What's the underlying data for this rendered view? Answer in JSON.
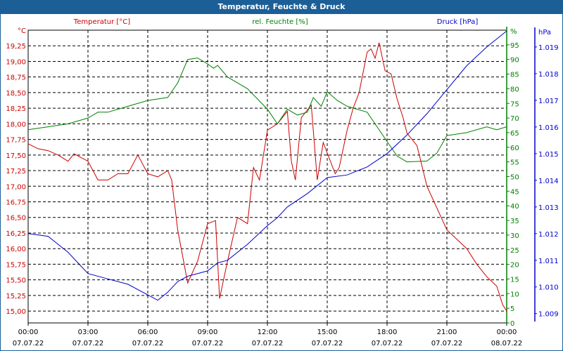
{
  "title": "Temperatur, Feuchte & Druck",
  "chart_data": {
    "type": "line",
    "title": "Temperatur, Feuchte & Druck",
    "x_ticks": [
      {
        "t": 0,
        "time": "00:00",
        "date": "07.07.22"
      },
      {
        "t": 3,
        "time": "03:00",
        "date": "07.07.22"
      },
      {
        "t": 6,
        "time": "06:00",
        "date": "07.07.22"
      },
      {
        "t": 9,
        "time": "09:00",
        "date": "07.07.22"
      },
      {
        "t": 12,
        "time": "12:00",
        "date": "07.07.22"
      },
      {
        "t": 15,
        "time": "15:00",
        "date": "07.07.22"
      },
      {
        "t": 18,
        "time": "18:00",
        "date": "07.07.22"
      },
      {
        "t": 21,
        "time": "21:00",
        "date": "07.07.22"
      },
      {
        "t": 24,
        "time": "00:00",
        "date": "08.07.22"
      }
    ],
    "xlim": [
      0,
      24
    ],
    "grid": true,
    "axes": {
      "temp": {
        "label": "Temperatur [°C]",
        "unit": "°C",
        "color": "#cc0000",
        "ylim": [
          14.81,
          19.5
        ],
        "ticks": [
          "15,00",
          "15,25",
          "15,50",
          "15,75",
          "16,00",
          "16,25",
          "16,50",
          "16,75",
          "17,00",
          "17,25",
          "17,50",
          "17,75",
          "18,00",
          "18,25",
          "18,50",
          "18,75",
          "19,00",
          "19,25"
        ]
      },
      "hum": {
        "label": "rel. Feuchte [%]",
        "unit": "%",
        "color": "#008000",
        "ylim": [
          0,
          100
        ],
        "ticks": [
          "0",
          "5",
          "10",
          "15",
          "20",
          "25",
          "30",
          "35",
          "40",
          "45",
          "50",
          "55",
          "60",
          "65",
          "70",
          "75",
          "80",
          "85",
          "90",
          "95"
        ]
      },
      "press": {
        "label": "Druck [hPa]",
        "unit": "hPa",
        "color": "#0000cc",
        "ylim": [
          1.00865,
          1.01963
        ],
        "ticks": [
          "1.009",
          "1.010",
          "1.011",
          "1.012",
          "1.013",
          "1.014",
          "1.015",
          "1.016",
          "1.017",
          "1.018",
          "1.019"
        ]
      }
    },
    "series": [
      {
        "name": "Temperatur [°C]",
        "axis": "temp",
        "color": "#cc0000",
        "x": [
          0,
          0.5,
          1,
          1.5,
          2,
          2.3,
          3,
          3.5,
          4,
          4.5,
          5,
          5.5,
          6,
          6.5,
          7,
          7.2,
          7.5,
          8,
          8.5,
          9,
          9.4,
          9.6,
          10,
          10.5,
          11,
          11.3,
          11.6,
          12,
          12.5,
          13,
          13.2,
          13.4,
          13.7,
          14.2,
          14.5,
          14.8,
          15.4,
          15.6,
          16,
          16.3,
          16.6,
          17,
          17.2,
          17.4,
          17.6,
          17.9,
          18.2,
          18.5,
          18.8,
          19,
          19.5,
          20,
          21,
          22,
          22.5,
          23,
          23.5,
          23.8,
          24
        ],
        "values": [
          17.68,
          17.6,
          17.57,
          17.5,
          17.4,
          17.52,
          17.4,
          17.1,
          17.1,
          17.2,
          17.2,
          17.5,
          17.2,
          17.15,
          17.25,
          17.1,
          16.3,
          15.45,
          15.8,
          16.4,
          16.45,
          15.2,
          15.8,
          16.5,
          16.4,
          17.3,
          17.1,
          17.9,
          18.0,
          18.2,
          17.4,
          17.1,
          18.1,
          18.3,
          17.1,
          17.7,
          17.2,
          17.3,
          17.9,
          18.25,
          18.5,
          19.15,
          19.2,
          19.05,
          19.3,
          18.85,
          18.8,
          18.4,
          18.1,
          17.85,
          17.65,
          17.0,
          16.3,
          16.0,
          15.75,
          15.55,
          15.4,
          15.1,
          15.0
        ]
      },
      {
        "name": "rel. Feuchte [%]",
        "axis": "hum",
        "color": "#008000",
        "x": [
          0,
          1,
          2,
          3,
          3.5,
          4,
          5,
          6,
          7,
          7.5,
          8,
          8.5,
          9,
          9.3,
          9.5,
          10,
          11,
          12,
          12.5,
          13,
          13.5,
          14,
          14.3,
          14.7,
          15,
          15.5,
          16,
          16.5,
          17,
          17.5,
          18,
          18.5,
          19,
          20,
          20.5,
          21,
          22,
          23,
          23.5,
          24
        ],
        "values": [
          66,
          67,
          68,
          70,
          72,
          72,
          74,
          76,
          77,
          82,
          90,
          90.5,
          88.5,
          87,
          88,
          84,
          80,
          73,
          68,
          73,
          71,
          72,
          77,
          74,
          79,
          76,
          74,
          73,
          72,
          67,
          62,
          57,
          55,
          55.3,
          58,
          64,
          65,
          67,
          66,
          67
        ]
      },
      {
        "name": "Druck [hPa]",
        "axis": "press",
        "color": "#0000cc",
        "x": [
          0,
          1,
          2,
          3,
          4,
          5,
          6,
          6.5,
          7,
          7.5,
          8,
          9,
          9.5,
          10,
          11,
          12,
          12.5,
          13,
          14,
          15,
          16,
          17,
          18,
          19,
          20,
          21,
          22,
          23,
          24
        ],
        "values": [
          1.012,
          1.0119,
          1.0113,
          1.0105,
          1.0103,
          1.0101,
          1.0097,
          1.0095,
          1.0098,
          1.0102,
          1.0104,
          1.0106,
          1.0109,
          1.011,
          1.0116,
          1.0123,
          1.0126,
          1.013,
          1.0135,
          1.0141,
          1.0142,
          1.0145,
          1.015,
          1.0157,
          1.0165,
          1.0174,
          1.0183,
          1.019,
          1.0196
        ]
      }
    ]
  }
}
